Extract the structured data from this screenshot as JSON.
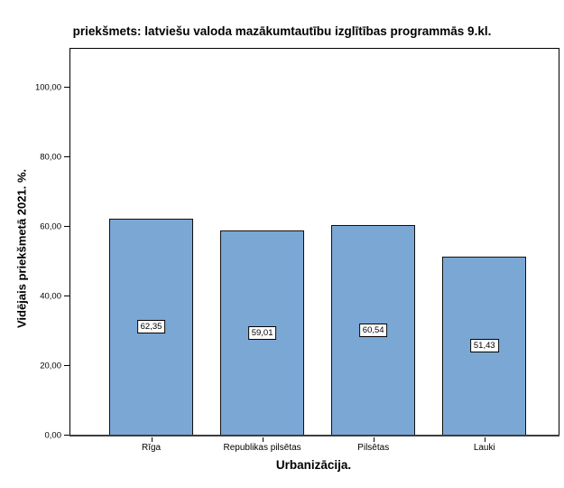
{
  "title": "priekšmets: latviešu valoda mazākumtautību izglītības programmās 9.kl.",
  "chart_data": {
    "type": "bar",
    "title": "priekšmets: latviešu valoda mazākumtautību izglītības programmās 9.kl.",
    "categories": [
      "Rīga",
      "Republikas pilsētas",
      "Pilsētas",
      "Lauki"
    ],
    "values": [
      62.35,
      59.01,
      60.54,
      51.43
    ],
    "value_labels": [
      "62,35",
      "59,01",
      "60,54",
      "51,43"
    ],
    "xlabel": "Urbanizācija.",
    "ylabel": "Vidējais priekšmetā 2021. %.",
    "ylim": [
      0,
      111.3
    ],
    "yticks": [
      0,
      20,
      40,
      60,
      80,
      100
    ],
    "ytick_labels": [
      "0,00",
      "20,00",
      "40,00",
      "60,00",
      "80,00",
      "100,00"
    ],
    "grid": false,
    "legend": "none",
    "colors": {
      "bar_fill": "#7BA7D5",
      "bar_border": "#101010",
      "axis_line": "#3d3d3d",
      "frame": "#000000",
      "text": "#000000",
      "background": "#ffffff"
    }
  }
}
